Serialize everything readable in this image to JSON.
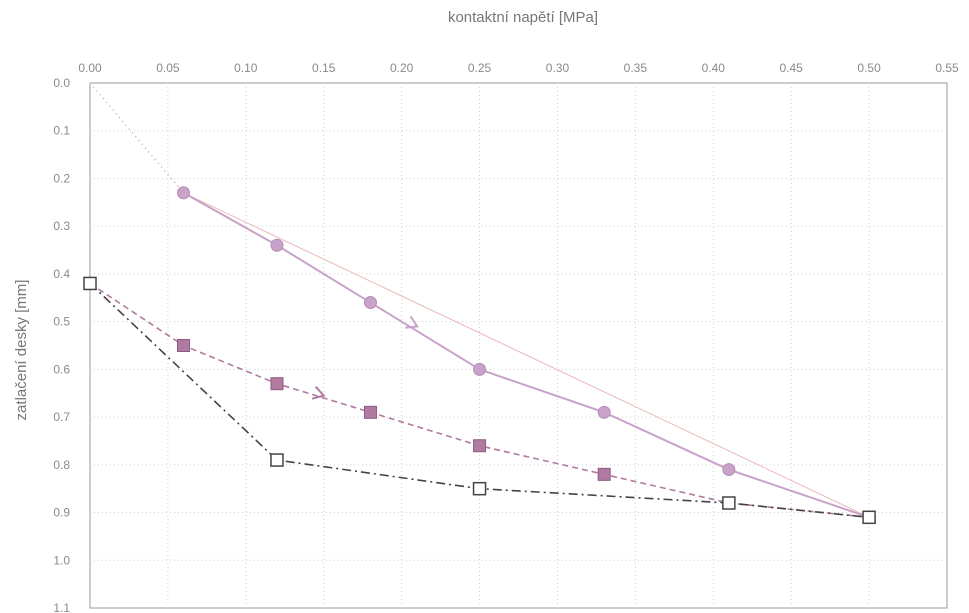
{
  "chart_data": {
    "type": "line",
    "xlabel": "kontaktní napětí [MPa]",
    "ylabel": "zatlačení desky [mm]",
    "x_axis_position": "top",
    "y_axis_inverted": true,
    "xlim": [
      0.0,
      0.55
    ],
    "ylim": [
      0.0,
      1.1
    ],
    "x_ticks": [
      "0.00",
      "0.05",
      "0.10",
      "0.15",
      "0.20",
      "0.25",
      "0.30",
      "0.35",
      "0.40",
      "0.45",
      "0.50",
      "0.55"
    ],
    "y_ticks": [
      "0.0",
      "0.1",
      "0.2",
      "0.3",
      "0.4",
      "0.5",
      "0.6",
      "0.7",
      "0.8",
      "0.9",
      "1.0",
      "1.1"
    ],
    "grid": true,
    "legend": "none",
    "series": [
      {
        "marker": "circle",
        "color": "#c8a2c8",
        "line_style": "solid",
        "x": [
          0.06,
          0.12,
          0.18,
          0.25,
          0.33,
          0.41,
          0.5
        ],
        "y": [
          0.23,
          0.34,
          0.46,
          0.6,
          0.69,
          0.81,
          0.91
        ]
      },
      {
        "marker": "square-filled",
        "color": "#b07aa1",
        "line_style": "dashed",
        "x": [
          0.0,
          0.06,
          0.12,
          0.18,
          0.25,
          0.33,
          0.41,
          0.5
        ],
        "y": [
          0.42,
          0.55,
          0.63,
          0.69,
          0.76,
          0.82,
          0.88,
          0.91
        ]
      },
      {
        "marker": "square-open",
        "color": "#444444",
        "line_style": "dash-dot",
        "x": [
          0.0,
          0.12,
          0.25,
          0.41,
          0.5
        ],
        "y": [
          0.42,
          0.79,
          0.85,
          0.88,
          0.91
        ]
      }
    ],
    "extra_lines": [
      {
        "style": "dotted",
        "color": "#c8a2c8",
        "x": [
          0.0,
          0.06
        ],
        "y": [
          0.0,
          0.23
        ]
      },
      {
        "style": "thin-fit",
        "color": "#e8b8b8",
        "x": [
          0.06,
          0.5
        ],
        "y": [
          0.23,
          0.91
        ]
      }
    ],
    "arrows": [
      {
        "series": 0,
        "x": 0.21,
        "y": 0.51,
        "direction": "loading"
      },
      {
        "series": 1,
        "x": 0.15,
        "y": 0.655,
        "direction": "unloading"
      }
    ]
  }
}
